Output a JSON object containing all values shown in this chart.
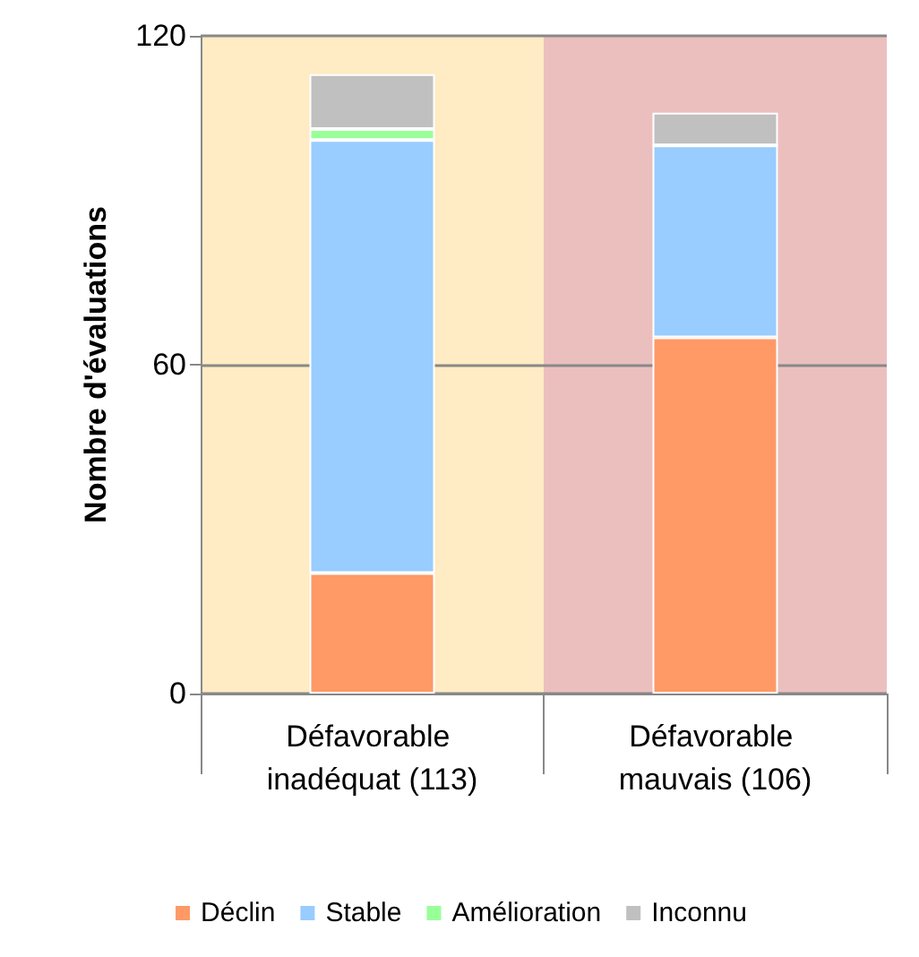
{
  "chart_data": {
    "type": "bar",
    "stacked": true,
    "ylabel": "Nombre d'évaluations",
    "categories": [
      "Défavorable inadéquat (113)",
      "Défavorable mauvais (106)"
    ],
    "series": [
      {
        "name": "Déclin",
        "color": "#ff9966",
        "values": [
          22,
          65
        ]
      },
      {
        "name": "Stable",
        "color": "#99ccff",
        "values": [
          79,
          35
        ]
      },
      {
        "name": "Amélioration",
        "color": "#99ff99",
        "values": [
          2,
          0
        ]
      },
      {
        "name": "Inconnu",
        "color": "#c0c0c0",
        "values": [
          10,
          6
        ]
      }
    ],
    "ylim": [
      0,
      120
    ],
    "yticks": [
      0,
      60,
      120
    ],
    "grid": "y",
    "legend": "bottom",
    "bands": [
      {
        "axis": "x",
        "from": "Défavorable inadéquat (113)",
        "to": "Défavorable inadéquat (113)",
        "color": "#ffebc4"
      },
      {
        "axis": "x",
        "from": "Défavorable mauvais (106)",
        "to": "Défavorable mauvais (106)",
        "color": "#ecbfbf"
      }
    ]
  }
}
